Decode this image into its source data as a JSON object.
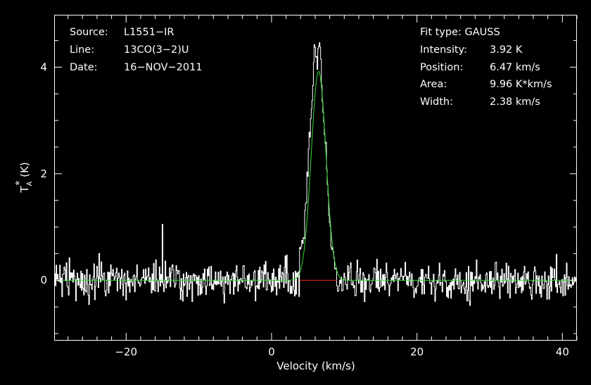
{
  "chart_data": {
    "type": "line",
    "xlabel": "Velocity (km/s)",
    "ylabel_main": "T",
    "ylabel_sup": "*",
    "ylabel_sub": "A",
    "ylabel_tail": " (K)",
    "xlim": [
      -29.8,
      42.0
    ],
    "ylim": [
      -1.12,
      4.97
    ],
    "xticks": [
      -20,
      0,
      20,
      40
    ],
    "yticks": [
      0,
      2,
      4
    ],
    "xtick_labels": [
      "−20",
      "0",
      "20",
      "40"
    ],
    "ytick_labels": [
      "0",
      "2",
      "4"
    ],
    "grid": false,
    "background": "#000000",
    "header_left": [
      {
        "key": "Source:",
        "value": "L1551−IR"
      },
      {
        "key": "Line:",
        "value": "13CO(3−2)U"
      },
      {
        "key": "Date:",
        "value": "16−NOV−2011"
      }
    ],
    "header_right_title": "Fit type: GAUSS",
    "header_right": [
      {
        "key": "Intensity:",
        "value": "3.92 K"
      },
      {
        "key": "Position:",
        "value": "6.47 km/s"
      },
      {
        "key": "Area:",
        "value": "9.96 K*km/s"
      },
      {
        "key": "Width:",
        "value": "2.38 km/s"
      }
    ],
    "spectrum": {
      "color": "#ffffff",
      "style": "histogram",
      "x_start": -29.8,
      "x_step": 0.1,
      "peak_points": [
        {
          "x": 3.9,
          "y": 0.4
        },
        {
          "x": 4.3,
          "y": 0.7
        },
        {
          "x": 4.8,
          "y": 1.4
        },
        {
          "x": 5.2,
          "y": 2.6
        },
        {
          "x": 5.6,
          "y": 3.4
        },
        {
          "x": 6.0,
          "y": 4.5
        },
        {
          "x": 6.3,
          "y": 4.0
        },
        {
          "x": 6.6,
          "y": 4.6
        },
        {
          "x": 7.0,
          "y": 3.3
        },
        {
          "x": 7.4,
          "y": 2.6
        },
        {
          "x": 7.8,
          "y": 1.5
        },
        {
          "x": 8.2,
          "y": 0.8
        },
        {
          "x": 8.6,
          "y": 0.4
        },
        {
          "x": 9.0,
          "y": 0.1
        }
      ],
      "noise_rms": 0.17,
      "spike_points": [
        {
          "x": -15.0,
          "y": 1.05
        }
      ]
    },
    "fit": {
      "color": "#33dd33",
      "amplitude": 3.92,
      "center": 6.47,
      "fwhm": 2.38
    },
    "baseline_window": {
      "color": "#ff2020",
      "x": [
        3.9,
        9.0
      ],
      "y": 0
    }
  }
}
